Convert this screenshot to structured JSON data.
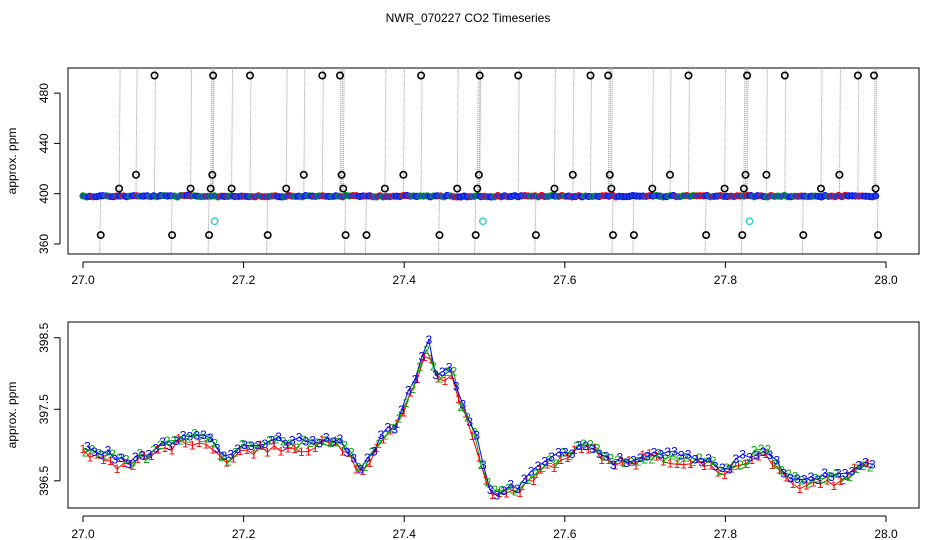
{
  "title": "NWR_070227  CO2 Timeseries",
  "colors": {
    "frame": "#000000",
    "raw_trace": "#9a9a9a",
    "flagged_marker": "#000000",
    "flagged_marker_cyan": "#33cccc",
    "standard_1": "#ff0000",
    "standard_2": "#00aa00",
    "standard_3": "#0000ff"
  },
  "chart_data": [
    {
      "type": "scatter",
      "xlim": [
        27.0,
        28.0
      ],
      "ylim": [
        352,
        500
      ],
      "ylabel": "approx. ppm",
      "x_ticks": [
        "27.0",
        "27.2",
        "27.4",
        "27.6",
        "27.8",
        "28.0"
      ],
      "y_ticks": [
        "360",
        "400",
        "440",
        "480"
      ],
      "baseline_ppm": 398,
      "baseline_series": [
        {
          "name": "1",
          "color": "standard_1",
          "marker": "filled-circle"
        },
        {
          "name": "2",
          "color": "standard_2",
          "marker": "filled-circle"
        },
        {
          "name": "3",
          "color": "standard_3",
          "marker": "filled-circle"
        }
      ],
      "flagged_points": [
        {
          "x": 27.022,
          "y": 367
        },
        {
          "x": 27.045,
          "y": 404
        },
        {
          "x": 27.066,
          "y": 415
        },
        {
          "x": 27.089,
          "y": 494
        },
        {
          "x": 27.111,
          "y": 367
        },
        {
          "x": 27.134,
          "y": 404
        },
        {
          "x": 27.157,
          "y": 367
        },
        {
          "x": 27.159,
          "y": 404
        },
        {
          "x": 27.161,
          "y": 415
        },
        {
          "x": 27.162,
          "y": 494
        },
        {
          "x": 27.185,
          "y": 404
        },
        {
          "x": 27.208,
          "y": 494
        },
        {
          "x": 27.23,
          "y": 367
        },
        {
          "x": 27.253,
          "y": 404
        },
        {
          "x": 27.275,
          "y": 415
        },
        {
          "x": 27.298,
          "y": 494
        },
        {
          "x": 27.32,
          "y": 494
        },
        {
          "x": 27.322,
          "y": 415
        },
        {
          "x": 27.324,
          "y": 404
        },
        {
          "x": 27.327,
          "y": 367
        },
        {
          "x": 27.353,
          "y": 367
        },
        {
          "x": 27.376,
          "y": 404
        },
        {
          "x": 27.399,
          "y": 415
        },
        {
          "x": 27.421,
          "y": 494
        },
        {
          "x": 27.444,
          "y": 367
        },
        {
          "x": 27.466,
          "y": 404
        },
        {
          "x": 27.489,
          "y": 367
        },
        {
          "x": 27.491,
          "y": 404
        },
        {
          "x": 27.493,
          "y": 415
        },
        {
          "x": 27.494,
          "y": 494
        },
        {
          "x": 27.542,
          "y": 494
        },
        {
          "x": 27.564,
          "y": 367
        },
        {
          "x": 27.587,
          "y": 404
        },
        {
          "x": 27.61,
          "y": 415
        },
        {
          "x": 27.632,
          "y": 494
        },
        {
          "x": 27.654,
          "y": 494
        },
        {
          "x": 27.656,
          "y": 415
        },
        {
          "x": 27.658,
          "y": 404
        },
        {
          "x": 27.66,
          "y": 367
        },
        {
          "x": 27.686,
          "y": 367
        },
        {
          "x": 27.709,
          "y": 404
        },
        {
          "x": 27.731,
          "y": 415
        },
        {
          "x": 27.754,
          "y": 494
        },
        {
          "x": 27.776,
          "y": 367
        },
        {
          "x": 27.799,
          "y": 404
        },
        {
          "x": 27.821,
          "y": 367
        },
        {
          "x": 27.823,
          "y": 404
        },
        {
          "x": 27.825,
          "y": 415
        },
        {
          "x": 27.827,
          "y": 494
        },
        {
          "x": 27.851,
          "y": 415
        },
        {
          "x": 27.874,
          "y": 494
        },
        {
          "x": 27.897,
          "y": 367
        },
        {
          "x": 27.919,
          "y": 404
        },
        {
          "x": 27.942,
          "y": 415
        },
        {
          "x": 27.965,
          "y": 494
        },
        {
          "x": 27.985,
          "y": 494
        },
        {
          "x": 27.987,
          "y": 404
        },
        {
          "x": 27.99,
          "y": 367
        }
      ],
      "cyan_points": [
        {
          "x": 27.164,
          "y": 378
        },
        {
          "x": 27.498,
          "y": 378
        },
        {
          "x": 27.83,
          "y": 378
        }
      ]
    },
    {
      "type": "scatter",
      "xlim": [
        27.0,
        28.0
      ],
      "ylim": [
        396.12,
        398.72
      ],
      "ylabel": "approx. ppm",
      "x_ticks": [
        "27.0",
        "27.2",
        "27.4",
        "27.6",
        "27.8",
        "28.0"
      ],
      "y_ticks": [
        "396.5",
        "397.5",
        "398.5"
      ],
      "series_labels": [
        "1",
        "2",
        "3"
      ],
      "markers_shown_as_text": true,
      "profile": [
        [
          27.0,
          396.95
        ],
        [
          27.03,
          396.85
        ],
        [
          27.05,
          396.72
        ],
        [
          27.08,
          396.86
        ],
        [
          27.1,
          396.98
        ],
        [
          27.13,
          397.12
        ],
        [
          27.16,
          397.05
        ],
        [
          27.18,
          396.78
        ],
        [
          27.2,
          396.96
        ],
        [
          27.24,
          397.02
        ],
        [
          27.28,
          397.0
        ],
        [
          27.31,
          397.08
        ],
        [
          27.33,
          396.9
        ],
        [
          27.35,
          396.62
        ],
        [
          27.37,
          397.12
        ],
        [
          27.39,
          397.25
        ],
        [
          27.41,
          397.82
        ],
        [
          27.43,
          398.4
        ],
        [
          27.44,
          397.95
        ],
        [
          27.46,
          398.05
        ],
        [
          27.47,
          397.6
        ],
        [
          27.49,
          397.05
        ],
        [
          27.5,
          396.58
        ],
        [
          27.51,
          396.3
        ],
        [
          27.54,
          396.38
        ],
        [
          27.57,
          396.68
        ],
        [
          27.6,
          396.85
        ],
        [
          27.63,
          397.02
        ],
        [
          27.66,
          396.72
        ],
        [
          27.7,
          396.86
        ],
        [
          27.74,
          396.82
        ],
        [
          27.77,
          396.78
        ],
        [
          27.8,
          396.65
        ],
        [
          27.83,
          396.82
        ],
        [
          27.85,
          396.95
        ],
        [
          27.87,
          396.58
        ],
        [
          27.9,
          396.45
        ],
        [
          27.94,
          396.55
        ],
        [
          27.98,
          396.75
        ]
      ]
    }
  ]
}
